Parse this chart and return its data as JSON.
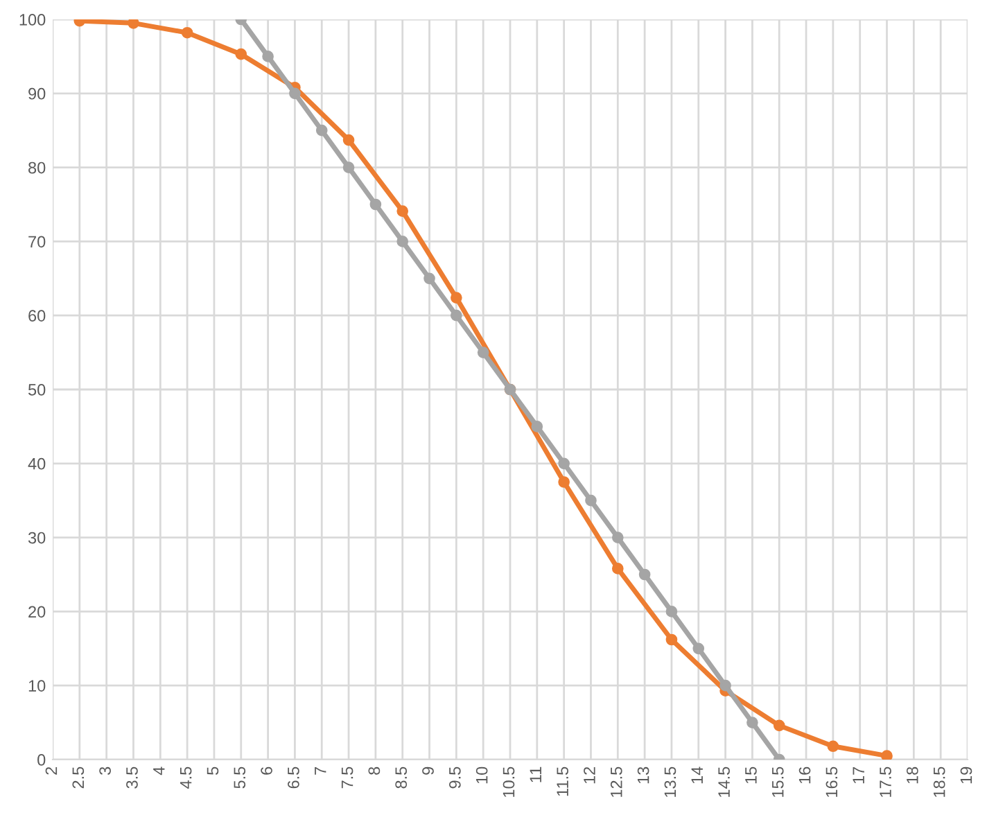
{
  "chart_data": {
    "type": "line",
    "xlim": [
      2,
      19
    ],
    "xticks": [
      2,
      2.5,
      3,
      3.5,
      4,
      4.5,
      5,
      5.5,
      6,
      6.5,
      7,
      7.5,
      8,
      8.5,
      9,
      9.5,
      10,
      10.5,
      11,
      11.5,
      12,
      12.5,
      13,
      13.5,
      14,
      14.5,
      15,
      15.5,
      16,
      16.5,
      17,
      17.5,
      18,
      18.5,
      19
    ],
    "ylim": [
      0,
      100
    ],
    "yticks": [
      0,
      10,
      20,
      30,
      40,
      50,
      60,
      70,
      80,
      90,
      100
    ],
    "grid": true,
    "marker": "circle",
    "line_style": "solid",
    "series": [
      {
        "color": "#ed7d31",
        "x": [
          2.5,
          3.5,
          4.5,
          5.5,
          6.5,
          7.5,
          8.5,
          9.5,
          10.5,
          11.5,
          12.5,
          13.5,
          14.5,
          15.5,
          16.5,
          17.5
        ],
        "values": [
          99.8,
          99.5,
          98.2,
          95.3,
          90.8,
          83.7,
          74.1,
          62.4,
          50,
          37.5,
          25.8,
          16.2,
          9.3,
          4.6,
          1.8,
          0.5
        ]
      },
      {
        "color": "#a5a5a5",
        "x": [
          5.5,
          6,
          6.5,
          7,
          7.5,
          8,
          8.5,
          9,
          9.5,
          10,
          10.5,
          11,
          11.5,
          12,
          12.5,
          13,
          13.5,
          14,
          14.5,
          15,
          15.5
        ],
        "values": [
          100,
          95,
          90,
          85,
          80,
          75,
          70,
          65,
          60,
          55,
          50,
          45,
          40,
          35,
          30,
          25,
          20,
          15,
          10,
          5,
          0
        ]
      }
    ]
  }
}
